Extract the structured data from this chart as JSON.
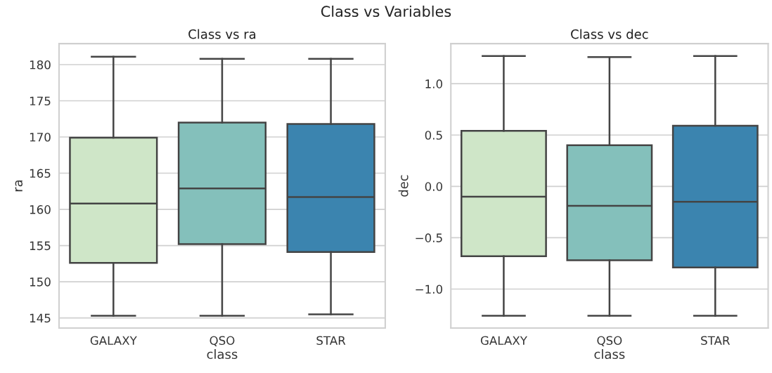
{
  "chart_data": [
    {
      "type": "box",
      "title": "Class vs ra",
      "xlabel": "class",
      "ylabel": "ra",
      "annotations": [
        "Class vs Variables"
      ],
      "categories": [
        "GALAXY",
        "QSO",
        "STAR"
      ],
      "colors": [
        "#cfe6c8",
        "#84c0bb",
        "#3b84af"
      ],
      "boxes": [
        {
          "low": 145.3,
          "q1": 152.6,
          "median": 160.8,
          "q3": 169.9,
          "high": 181.1
        },
        {
          "low": 145.3,
          "q1": 155.2,
          "median": 162.9,
          "q3": 172.0,
          "high": 180.8
        },
        {
          "low": 145.5,
          "q1": 154.1,
          "median": 161.7,
          "q3": 171.8,
          "high": 180.8
        }
      ],
      "ylim": [
        143.6,
        182.9
      ],
      "yticks": [
        145,
        150,
        155,
        160,
        165,
        170,
        175,
        180
      ],
      "grid": "y"
    },
    {
      "type": "box",
      "title": "Class vs dec",
      "xlabel": "class",
      "ylabel": "dec",
      "categories": [
        "GALAXY",
        "QSO",
        "STAR"
      ],
      "colors": [
        "#cfe6c8",
        "#84c0bb",
        "#3b84af"
      ],
      "boxes": [
        {
          "low": -1.26,
          "q1": -0.68,
          "median": -0.1,
          "q3": 0.54,
          "high": 1.27
        },
        {
          "low": -1.26,
          "q1": -0.72,
          "median": -0.19,
          "q3": 0.4,
          "high": 1.26
        },
        {
          "low": -1.26,
          "q1": -0.79,
          "median": -0.15,
          "q3": 0.59,
          "high": 1.27
        }
      ],
      "ylim": [
        -1.38,
        1.39
      ],
      "yticks": [
        {
          "value": -1.0,
          "label": "−1.0"
        },
        {
          "value": -0.5,
          "label": "−0.5"
        },
        {
          "value": 0.0,
          "label": "0.0"
        },
        {
          "value": 0.5,
          "label": "0.5"
        },
        {
          "value": 1.0,
          "label": "1.0"
        }
      ],
      "grid": "y"
    }
  ]
}
